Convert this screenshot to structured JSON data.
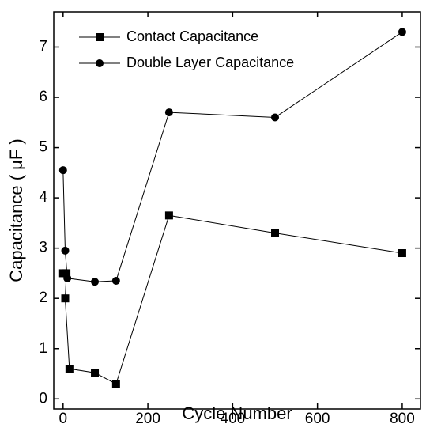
{
  "chart_data": {
    "type": "line",
    "xlabel": "Cycle Number",
    "ylabel": "Capacitance ( μF )",
    "xlim": [
      -22,
      843
    ],
    "xticks": [
      0,
      200,
      400,
      600,
      800
    ],
    "ylim": [
      -0.2,
      7.7
    ],
    "yticks": [
      0,
      1,
      2,
      3,
      4,
      5,
      6,
      7
    ],
    "legend": "upper left",
    "series": [
      {
        "name": "Contact Capacitance",
        "color": "#000000",
        "marker": "square",
        "x": [
          0,
          8,
          5,
          15,
          75,
          125,
          250,
          500,
          800
        ],
        "values": [
          2.5,
          2.5,
          2.0,
          0.6,
          0.52,
          0.3,
          3.65,
          3.3,
          2.9
        ]
      },
      {
        "name": "Double Layer Capacitance",
        "color": "#000000",
        "marker": "circle",
        "x": [
          0,
          5,
          10,
          75,
          125,
          250,
          500,
          800
        ],
        "values": [
          4.55,
          2.95,
          2.4,
          2.33,
          2.35,
          5.7,
          5.6,
          7.3
        ]
      }
    ]
  }
}
